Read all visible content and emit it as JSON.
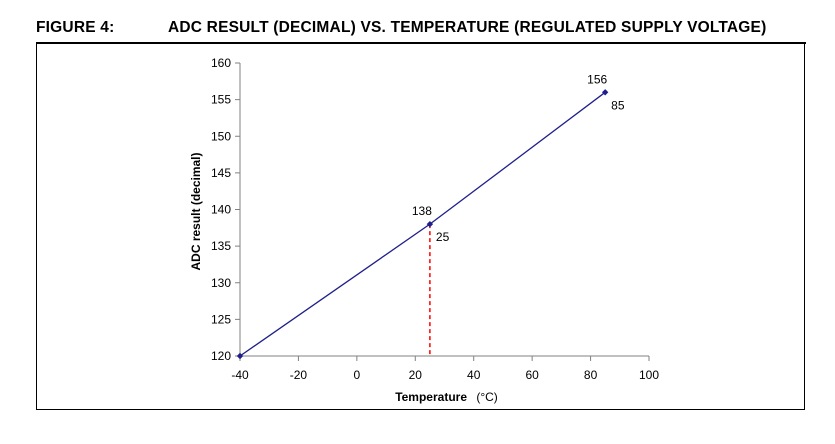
{
  "figure": {
    "number": "FIGURE 4:",
    "title": "ADC RESULT (DECIMAL) VS. TEMPERATURE (REGULATED SUPPLY VOLTAGE)"
  },
  "chart_data": {
    "type": "line",
    "title": "ADC RESULT (DECIMAL) VS. TEMPERATURE (REGULATED SUPPLY VOLTAGE)",
    "xlabel": "Temperature",
    "xunit": "(°C)",
    "ylabel": "ADC result (decimal)",
    "xlim": [
      -40,
      100
    ],
    "ylim": [
      120,
      160
    ],
    "xticks": [
      -40,
      -20,
      0,
      20,
      40,
      60,
      80,
      100
    ],
    "yticks": [
      120,
      125,
      130,
      135,
      140,
      145,
      150,
      155,
      160
    ],
    "grid": false,
    "legend": "none",
    "series": [
      {
        "name": "ADC result",
        "color": "#1f1f8c",
        "points": [
          {
            "x": -40,
            "y": 120
          },
          {
            "x": 25,
            "y": 138
          },
          {
            "x": 85,
            "y": 156
          }
        ]
      }
    ],
    "annotations": [
      {
        "x": 25,
        "y": 138,
        "value_label": "138",
        "x_label": "25"
      },
      {
        "x": 85,
        "y": 156,
        "value_label": "156",
        "x_label": "85"
      }
    ],
    "reference_line": {
      "x": 25,
      "from_y": 120,
      "to_y": 138,
      "style": "dashed",
      "color": "#ff0000"
    }
  }
}
